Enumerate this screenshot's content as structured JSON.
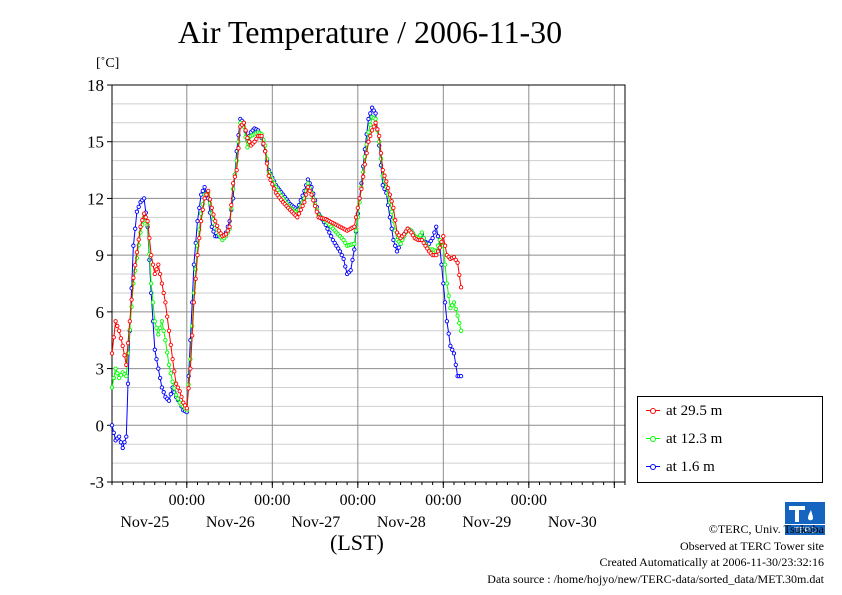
{
  "title": "Air Temperature / 2006-11-30",
  "unit_label": "[˚C]",
  "xlabel": "(LST)",
  "credits": [
    "©TERC, Univ. Tsukuba",
    "Observed at TERC Tower site",
    "Created Automatically at 2006-11-30/23:32:16",
    "Data source : /home/hojyo/new/TERC-data/sorted_data/MET.30m.dat"
  ],
  "logo_text": "TERC",
  "chart_data": {
    "type": "line",
    "title": "Air Temperature / 2006-11-30",
    "ylabel": "[˚C]",
    "xlabel": "(LST)",
    "ylim": [
      -3,
      18
    ],
    "yticks": [
      -3,
      0,
      3,
      6,
      9,
      12,
      15,
      18
    ],
    "xlim": [
      0,
      144
    ],
    "xticks": [
      {
        "x": 21,
        "time": "00:00",
        "date": "Nov-25"
      },
      {
        "x": 45,
        "time": "00:00",
        "date": "Nov-26"
      },
      {
        "x": 69,
        "time": "00:00",
        "date": "Nov-27"
      },
      {
        "x": 93,
        "time": "00:00",
        "date": "Nov-28"
      },
      {
        "x": 117,
        "time": "00:00",
        "date": "Nov-29"
      },
      {
        "x": 141,
        "time": "",
        "date": "Nov-30"
      }
    ],
    "x_unit": "hours from start of plot (LST)",
    "grid": true,
    "legend": "bottom-right, outside plot",
    "series": [
      {
        "name": "at 29.5 m",
        "color": "#ff0000",
        "points": [
          [
            0,
            3.8
          ],
          [
            1,
            5.5
          ],
          [
            2,
            5.0
          ],
          [
            3,
            4.2
          ],
          [
            4,
            3.2
          ],
          [
            6,
            7.8
          ],
          [
            8,
            10.5
          ],
          [
            9,
            11.2
          ],
          [
            10,
            10.8
          ],
          [
            11,
            9.0
          ],
          [
            12,
            8.0
          ],
          [
            13,
            8.5
          ],
          [
            14,
            7.5
          ],
          [
            15,
            6.5
          ],
          [
            16,
            5.0
          ],
          [
            17,
            3.5
          ],
          [
            18,
            2.2
          ],
          [
            19,
            1.8
          ],
          [
            20,
            1.2
          ],
          [
            21,
            0.9
          ],
          [
            22,
            3.0
          ],
          [
            23,
            6.5
          ],
          [
            24,
            9.0
          ],
          [
            25,
            10.8
          ],
          [
            26,
            12.0
          ],
          [
            27,
            12.4
          ],
          [
            28,
            11.5
          ],
          [
            29,
            10.8
          ],
          [
            30,
            10.3
          ],
          [
            31,
            10.0
          ],
          [
            32,
            10.1
          ],
          [
            33,
            10.5
          ],
          [
            34,
            12.8
          ],
          [
            35,
            13.5
          ],
          [
            36,
            15.8
          ],
          [
            37,
            16.0
          ],
          [
            38,
            15.2
          ],
          [
            39,
            14.8
          ],
          [
            40,
            15.0
          ],
          [
            41,
            15.3
          ],
          [
            42,
            15.3
          ],
          [
            43,
            14.5
          ],
          [
            44,
            13.2
          ],
          [
            46,
            12.3
          ],
          [
            48,
            11.8
          ],
          [
            50,
            11.4
          ],
          [
            52,
            11.0
          ],
          [
            54,
            11.8
          ],
          [
            55,
            12.6
          ],
          [
            56,
            12.2
          ],
          [
            58,
            11.0
          ],
          [
            60,
            10.9
          ],
          [
            62,
            10.7
          ],
          [
            64,
            10.5
          ],
          [
            65,
            10.4
          ],
          [
            66,
            10.3
          ],
          [
            68,
            10.5
          ],
          [
            69,
            11.5
          ],
          [
            70,
            12.5
          ],
          [
            71,
            13.8
          ],
          [
            72,
            15.0
          ],
          [
            73,
            15.6
          ],
          [
            74,
            16.0
          ],
          [
            75,
            15.3
          ],
          [
            76,
            13.5
          ],
          [
            77,
            12.9
          ],
          [
            78,
            12.2
          ],
          [
            79,
            11.5
          ],
          [
            80,
            10.2
          ],
          [
            81,
            9.9
          ],
          [
            82,
            10.1
          ],
          [
            83,
            10.4
          ],
          [
            84,
            10.2
          ],
          [
            85,
            9.9
          ],
          [
            86,
            9.8
          ],
          [
            87,
            9.8
          ],
          [
            88,
            9.5
          ],
          [
            89,
            9.2
          ],
          [
            90,
            9.0
          ],
          [
            91,
            9.0
          ],
          [
            92,
            9.4
          ],
          [
            93,
            10.0
          ],
          [
            94,
            9.0
          ],
          [
            95,
            8.8
          ],
          [
            96,
            8.9
          ],
          [
            97,
            8.6
          ],
          [
            98,
            7.3
          ]
        ]
      },
      {
        "name": "at 12.3 m",
        "color": "#00ff00",
        "points": [
          [
            0,
            2.0
          ],
          [
            1,
            3.0
          ],
          [
            2,
            2.5
          ],
          [
            3,
            2.8
          ],
          [
            4,
            2.6
          ],
          [
            6,
            7.5
          ],
          [
            8,
            10.2
          ],
          [
            9,
            11.0
          ],
          [
            10,
            10.6
          ],
          [
            11,
            7.5
          ],
          [
            12,
            5.5
          ],
          [
            13,
            4.8
          ],
          [
            14,
            5.5
          ],
          [
            15,
            4.5
          ],
          [
            16,
            3.2
          ],
          [
            17,
            2.3
          ],
          [
            18,
            1.6
          ],
          [
            19,
            1.2
          ],
          [
            20,
            1.0
          ],
          [
            21,
            0.8
          ],
          [
            22,
            3.5
          ],
          [
            23,
            7.0
          ],
          [
            24,
            9.5
          ],
          [
            25,
            11.2
          ],
          [
            26,
            12.2
          ],
          [
            27,
            12.3
          ],
          [
            28,
            11.2
          ],
          [
            29,
            10.6
          ],
          [
            30,
            10.1
          ],
          [
            31,
            9.8
          ],
          [
            32,
            10.0
          ],
          [
            33,
            10.4
          ],
          [
            34,
            12.5
          ],
          [
            35,
            14.0
          ],
          [
            36,
            16.0
          ],
          [
            37,
            15.8
          ],
          [
            38,
            14.7
          ],
          [
            39,
            15.3
          ],
          [
            40,
            15.4
          ],
          [
            41,
            15.5
          ],
          [
            42,
            15.4
          ],
          [
            43,
            14.8
          ],
          [
            44,
            13.4
          ],
          [
            46,
            12.6
          ],
          [
            48,
            12.0
          ],
          [
            50,
            11.5
          ],
          [
            52,
            11.2
          ],
          [
            54,
            12.0
          ],
          [
            55,
            12.8
          ],
          [
            56,
            12.3
          ],
          [
            58,
            11.1
          ],
          [
            60,
            10.8
          ],
          [
            62,
            10.4
          ],
          [
            64,
            10.0
          ],
          [
            65,
            9.8
          ],
          [
            66,
            9.5
          ],
          [
            68,
            9.6
          ],
          [
            69,
            11.0
          ],
          [
            70,
            12.6
          ],
          [
            71,
            14.2
          ],
          [
            72,
            15.5
          ],
          [
            73,
            16.3
          ],
          [
            74,
            16.2
          ],
          [
            75,
            15.0
          ],
          [
            76,
            13.2
          ],
          [
            77,
            12.6
          ],
          [
            78,
            11.8
          ],
          [
            79,
            10.8
          ],
          [
            80,
            9.8
          ],
          [
            81,
            9.6
          ],
          [
            82,
            10.0
          ],
          [
            83,
            10.4
          ],
          [
            84,
            10.3
          ],
          [
            85,
            10.0
          ],
          [
            86,
            9.9
          ],
          [
            87,
            10.2
          ],
          [
            88,
            9.6
          ],
          [
            89,
            9.3
          ],
          [
            90,
            9.3
          ],
          [
            91,
            9.2
          ],
          [
            92,
            9.8
          ],
          [
            93,
            9.5
          ],
          [
            94,
            7.5
          ],
          [
            95,
            6.2
          ],
          [
            96,
            6.5
          ],
          [
            97,
            5.8
          ],
          [
            98,
            5.0
          ]
        ]
      },
      {
        "name": "at 1.6 m",
        "color": "#0000ff",
        "points": [
          [
            0,
            0.0
          ],
          [
            1,
            -0.8
          ],
          [
            2,
            -0.6
          ],
          [
            3,
            -1.2
          ],
          [
            4,
            -0.6
          ],
          [
            5,
            5.0
          ],
          [
            6,
            9.5
          ],
          [
            7,
            11.3
          ],
          [
            8,
            11.8
          ],
          [
            9,
            12.0
          ],
          [
            10,
            10.5
          ],
          [
            11,
            7.0
          ],
          [
            12,
            4.0
          ],
          [
            13,
            3.0
          ],
          [
            14,
            2.0
          ],
          [
            15,
            1.5
          ],
          [
            16,
            1.3
          ],
          [
            17,
            2.0
          ],
          [
            18,
            1.5
          ],
          [
            19,
            1.2
          ],
          [
            20,
            0.8
          ],
          [
            21,
            0.7
          ],
          [
            22,
            4.5
          ],
          [
            23,
            8.5
          ],
          [
            24,
            10.8
          ],
          [
            25,
            12.2
          ],
          [
            26,
            12.6
          ],
          [
            27,
            12.0
          ],
          [
            28,
            10.5
          ],
          [
            29,
            10.0
          ],
          [
            30,
            10.0
          ],
          [
            31,
            9.9
          ],
          [
            32,
            10.2
          ],
          [
            33,
            10.8
          ],
          [
            34,
            12.0
          ],
          [
            35,
            14.5
          ],
          [
            36,
            16.2
          ],
          [
            37,
            16.0
          ],
          [
            38,
            15.1
          ],
          [
            39,
            15.5
          ],
          [
            40,
            15.7
          ],
          [
            41,
            15.6
          ],
          [
            42,
            15.2
          ],
          [
            43,
            14.5
          ],
          [
            44,
            13.5
          ],
          [
            46,
            12.7
          ],
          [
            48,
            12.2
          ],
          [
            50,
            11.7
          ],
          [
            52,
            11.4
          ],
          [
            54,
            12.4
          ],
          [
            55,
            13.0
          ],
          [
            56,
            12.6
          ],
          [
            58,
            11.2
          ],
          [
            60,
            10.6
          ],
          [
            62,
            9.8
          ],
          [
            64,
            9.2
          ],
          [
            65,
            8.8
          ],
          [
            66,
            8.0
          ],
          [
            67,
            8.2
          ],
          [
            68,
            9.3
          ],
          [
            69,
            11.2
          ],
          [
            70,
            12.8
          ],
          [
            71,
            14.6
          ],
          [
            72,
            16.2
          ],
          [
            73,
            16.8
          ],
          [
            74,
            16.5
          ],
          [
            75,
            14.8
          ],
          [
            76,
            12.7
          ],
          [
            77,
            12.3
          ],
          [
            78,
            11.0
          ],
          [
            79,
            9.8
          ],
          [
            80,
            9.2
          ],
          [
            81,
            9.6
          ],
          [
            82,
            10.1
          ],
          [
            83,
            10.4
          ],
          [
            84,
            10.3
          ],
          [
            85,
            10.0
          ],
          [
            86,
            9.8
          ],
          [
            87,
            10.1
          ],
          [
            88,
            9.7
          ],
          [
            89,
            9.6
          ],
          [
            90,
            9.9
          ],
          [
            91,
            10.5
          ],
          [
            92,
            9.5
          ],
          [
            93,
            7.5
          ],
          [
            94,
            5.5
          ],
          [
            95,
            4.2
          ],
          [
            96,
            3.8
          ],
          [
            97,
            2.6
          ],
          [
            98,
            2.6
          ]
        ]
      }
    ]
  }
}
